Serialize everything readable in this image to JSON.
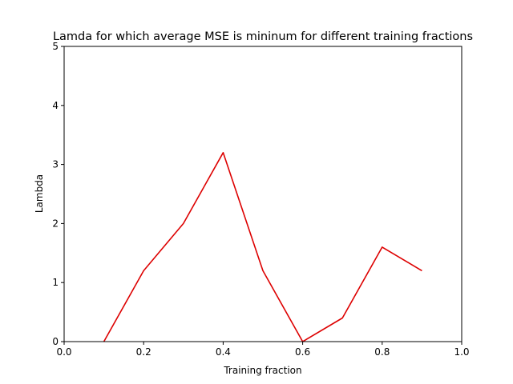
{
  "chart_data": {
    "type": "line",
    "title": "Lamda for which average MSE is mininum for different training fractions",
    "xlabel": "Training fraction",
    "ylabel": "Lambda",
    "xlim": [
      0.0,
      1.0
    ],
    "ylim": [
      0,
      5
    ],
    "xticks": [
      "0.0",
      "0.2",
      "0.4",
      "0.6",
      "0.8",
      "1.0"
    ],
    "yticks": [
      "0",
      "1",
      "2",
      "3",
      "4",
      "5"
    ],
    "grid": false,
    "series": [
      {
        "color": "#dd0000",
        "x": [
          0.1,
          0.2,
          0.3,
          0.4,
          0.5,
          0.6,
          0.7,
          0.8,
          0.9
        ],
        "y": [
          0.0,
          1.2,
          2.0,
          3.2,
          1.2,
          0.0,
          0.4,
          1.6,
          1.2
        ]
      }
    ]
  }
}
